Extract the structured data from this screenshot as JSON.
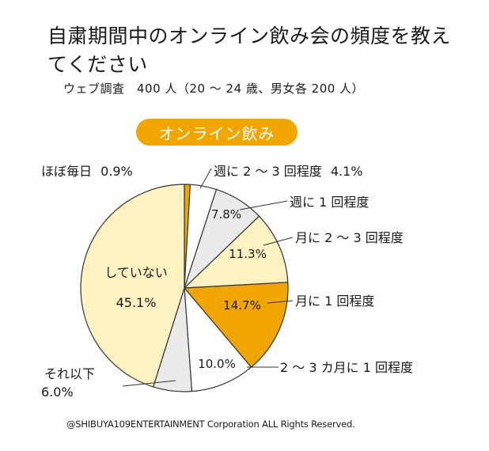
{
  "title": "自粛期間中のオンライン飲み会の頻度を教えてください",
  "subtitle": "ウェブ調査　400 人（20 〜 24 歳、男女各 200 人）",
  "copyright": "@SHIBUYA109ENTERTAINMENT Corporation ALL Rights Reserved.",
  "chart_data": {
    "type": "pie",
    "title": "オンライン飲み",
    "unit": "%",
    "slices": [
      {
        "label": "ほぼ毎日",
        "value": 0.9,
        "value_text": "0.9%",
        "color": "#F0A500"
      },
      {
        "label": "週に 2 〜 3 回程度",
        "value": 4.1,
        "value_text": "4.1%",
        "color": "#FFFFFF"
      },
      {
        "label": "週に 1 回程度",
        "value": 7.8,
        "value_text": "7.8%",
        "color": "#EAEAEA"
      },
      {
        "label": "月に 2 〜 3 回程度",
        "value": 11.3,
        "value_text": "11.3%",
        "color": "#FFF2C2"
      },
      {
        "label": "月に 1 回程度",
        "value": 14.7,
        "value_text": "14.7%",
        "color": "#F0A500"
      },
      {
        "label": "2 〜 3 カ月に 1 回程度",
        "value": 10.0,
        "value_text": "10.0%",
        "color": "#FFFFFF"
      },
      {
        "label": "それ以下",
        "value": 6.0,
        "value_text": "6.0%",
        "color": "#EAEAEA"
      },
      {
        "label": "していない",
        "value": 45.1,
        "value_text": "45.1%",
        "color": "#FFF2C2"
      }
    ]
  }
}
